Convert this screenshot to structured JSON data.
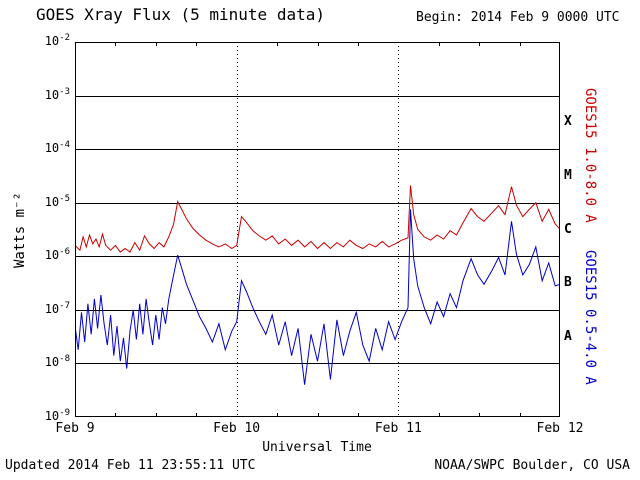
{
  "header": {
    "title": "GOES Xray Flux (5 minute data)",
    "begin_label": "Begin: 2014 Feb 9 0000 UTC"
  },
  "footer": {
    "updated": "Updated 2014 Feb 11 23:55:11 UTC",
    "source": "NOAA/SWPC Boulder, CO USA"
  },
  "chart_data": {
    "type": "line",
    "title": "GOES Xray Flux (5 minute data)",
    "xlabel": "Universal Time",
    "ylabel": "Watts m⁻²",
    "x_range_days": [
      0,
      3
    ],
    "ylim_exponents": [
      -9,
      -2
    ],
    "y_tick_exponents": [
      -2,
      -3,
      -4,
      -5,
      -6,
      -7,
      -8,
      -9
    ],
    "x_ticks": [
      {
        "day": 0,
        "label": "Feb 9"
      },
      {
        "day": 1,
        "label": "Feb 10"
      },
      {
        "day": 2,
        "label": "Feb 11"
      },
      {
        "day": 3,
        "label": "Feb 12"
      }
    ],
    "day_gridlines": [
      1,
      2
    ],
    "grid": true,
    "legend_position": "right",
    "flare_classes": [
      {
        "label": "X",
        "exponent": -3.5
      },
      {
        "label": "M",
        "exponent": -4.5
      },
      {
        "label": "C",
        "exponent": -5.5
      },
      {
        "label": "B",
        "exponent": -6.5
      },
      {
        "label": "A",
        "exponent": -7.5
      }
    ],
    "series": [
      {
        "name": "GOES15 1.0-8.0 A",
        "color": "#cc0000",
        "points": [
          [
            0.0,
            1.6e-06
          ],
          [
            0.03,
            1.3e-06
          ],
          [
            0.05,
            2.3e-06
          ],
          [
            0.07,
            1.5e-06
          ],
          [
            0.09,
            2.5e-06
          ],
          [
            0.11,
            1.7e-06
          ],
          [
            0.13,
            2.1e-06
          ],
          [
            0.15,
            1.5e-06
          ],
          [
            0.17,
            2.6e-06
          ],
          [
            0.19,
            1.6e-06
          ],
          [
            0.22,
            1.3e-06
          ],
          [
            0.25,
            1.6e-06
          ],
          [
            0.28,
            1.2e-06
          ],
          [
            0.31,
            1.4e-06
          ],
          [
            0.34,
            1.2e-06
          ],
          [
            0.37,
            1.8e-06
          ],
          [
            0.4,
            1.3e-06
          ],
          [
            0.43,
            2.4e-06
          ],
          [
            0.46,
            1.7e-06
          ],
          [
            0.49,
            1.4e-06
          ],
          [
            0.52,
            1.8e-06
          ],
          [
            0.55,
            1.5e-06
          ],
          [
            0.58,
            2.3e-06
          ],
          [
            0.61,
            4e-06
          ],
          [
            0.635,
            1.05e-05
          ],
          [
            0.66,
            7.5e-06
          ],
          [
            0.69,
            5e-06
          ],
          [
            0.73,
            3.3e-06
          ],
          [
            0.77,
            2.5e-06
          ],
          [
            0.81,
            2e-06
          ],
          [
            0.85,
            1.7e-06
          ],
          [
            0.89,
            1.5e-06
          ],
          [
            0.93,
            1.7e-06
          ],
          [
            0.97,
            1.4e-06
          ],
          [
            1.0,
            1.6e-06
          ],
          [
            1.03,
            5.5e-06
          ],
          [
            1.06,
            4.3e-06
          ],
          [
            1.1,
            3e-06
          ],
          [
            1.14,
            2.4e-06
          ],
          [
            1.18,
            2e-06
          ],
          [
            1.22,
            2.4e-06
          ],
          [
            1.26,
            1.7e-06
          ],
          [
            1.3,
            2.1e-06
          ],
          [
            1.34,
            1.6e-06
          ],
          [
            1.38,
            2e-06
          ],
          [
            1.42,
            1.5e-06
          ],
          [
            1.46,
            1.9e-06
          ],
          [
            1.5,
            1.4e-06
          ],
          [
            1.54,
            1.8e-06
          ],
          [
            1.58,
            1.4e-06
          ],
          [
            1.62,
            1.8e-06
          ],
          [
            1.66,
            1.5e-06
          ],
          [
            1.7,
            2e-06
          ],
          [
            1.74,
            1.6e-06
          ],
          [
            1.78,
            1.4e-06
          ],
          [
            1.82,
            1.7e-06
          ],
          [
            1.86,
            1.5e-06
          ],
          [
            1.9,
            1.9e-06
          ],
          [
            1.94,
            1.5e-06
          ],
          [
            1.98,
            1.7e-06
          ],
          [
            2.02,
            2e-06
          ],
          [
            2.06,
            2.2e-06
          ],
          [
            2.075,
            2.1e-05
          ],
          [
            2.095,
            6e-06
          ],
          [
            2.12,
            3.2e-06
          ],
          [
            2.16,
            2.3e-06
          ],
          [
            2.2,
            2e-06
          ],
          [
            2.24,
            2.5e-06
          ],
          [
            2.28,
            2.1e-06
          ],
          [
            2.32,
            3e-06
          ],
          [
            2.36,
            2.5e-06
          ],
          [
            2.4,
            4.2e-06
          ],
          [
            2.45,
            7.8e-06
          ],
          [
            2.49,
            5.5e-06
          ],
          [
            2.53,
            4.5e-06
          ],
          [
            2.58,
            6.5e-06
          ],
          [
            2.62,
            8.8e-06
          ],
          [
            2.66,
            6e-06
          ],
          [
            2.7,
            2e-05
          ],
          [
            2.73,
            9e-06
          ],
          [
            2.77,
            5.5e-06
          ],
          [
            2.81,
            7.5e-06
          ],
          [
            2.85,
            1e-05
          ],
          [
            2.89,
            4.5e-06
          ],
          [
            2.93,
            7.5e-06
          ],
          [
            2.97,
            4e-06
          ],
          [
            3.0,
            3.2e-06
          ]
        ]
      },
      {
        "name": "GOES15 0.5-4.0 A",
        "color": "#0000cc",
        "points": [
          [
            0.0,
            5e-08
          ],
          [
            0.02,
            1.8e-08
          ],
          [
            0.04,
            9e-08
          ],
          [
            0.06,
            2.5e-08
          ],
          [
            0.08,
            1.3e-07
          ],
          [
            0.1,
            3.5e-08
          ],
          [
            0.12,
            1.6e-07
          ],
          [
            0.14,
            4.5e-08
          ],
          [
            0.16,
            1.9e-07
          ],
          [
            0.18,
            5.5e-08
          ],
          [
            0.2,
            2.2e-08
          ],
          [
            0.22,
            8e-08
          ],
          [
            0.24,
            1.4e-08
          ],
          [
            0.26,
            5e-08
          ],
          [
            0.28,
            1.1e-08
          ],
          [
            0.3,
            3e-08
          ],
          [
            0.32,
            8e-09
          ],
          [
            0.34,
            4e-08
          ],
          [
            0.36,
            1e-07
          ],
          [
            0.38,
            2.8e-08
          ],
          [
            0.4,
            1.3e-07
          ],
          [
            0.42,
            3.5e-08
          ],
          [
            0.44,
            1.6e-07
          ],
          [
            0.46,
            5.5e-08
          ],
          [
            0.48,
            2.2e-08
          ],
          [
            0.5,
            8e-08
          ],
          [
            0.52,
            2.8e-08
          ],
          [
            0.54,
            1.1e-07
          ],
          [
            0.56,
            5.5e-08
          ],
          [
            0.58,
            1.6e-07
          ],
          [
            0.61,
            4.5e-07
          ],
          [
            0.635,
            1.05e-06
          ],
          [
            0.66,
            6e-07
          ],
          [
            0.69,
            3e-07
          ],
          [
            0.73,
            1.5e-07
          ],
          [
            0.77,
            7.5e-08
          ],
          [
            0.81,
            4.5e-08
          ],
          [
            0.85,
            2.5e-08
          ],
          [
            0.89,
            5.5e-08
          ],
          [
            0.93,
            1.8e-08
          ],
          [
            0.97,
            4e-08
          ],
          [
            1.0,
            6e-08
          ],
          [
            1.03,
            3.5e-07
          ],
          [
            1.06,
            2.2e-07
          ],
          [
            1.1,
            1.1e-07
          ],
          [
            1.14,
            6e-08
          ],
          [
            1.18,
            3.5e-08
          ],
          [
            1.22,
            8e-08
          ],
          [
            1.26,
            2.2e-08
          ],
          [
            1.3,
            6e-08
          ],
          [
            1.34,
            1.4e-08
          ],
          [
            1.38,
            4.5e-08
          ],
          [
            1.42,
            4e-09
          ],
          [
            1.46,
            3.5e-08
          ],
          [
            1.5,
            1.1e-08
          ],
          [
            1.54,
            5.5e-08
          ],
          [
            1.58,
            5e-09
          ],
          [
            1.62,
            6.5e-08
          ],
          [
            1.66,
            1.4e-08
          ],
          [
            1.7,
            4e-08
          ],
          [
            1.74,
            9e-08
          ],
          [
            1.78,
            2.2e-08
          ],
          [
            1.82,
            1.1e-08
          ],
          [
            1.86,
            4.5e-08
          ],
          [
            1.9,
            1.8e-08
          ],
          [
            1.94,
            6e-08
          ],
          [
            1.98,
            2.8e-08
          ],
          [
            2.02,
            6e-08
          ],
          [
            2.06,
            1.1e-07
          ],
          [
            2.075,
            7.5e-06
          ],
          [
            2.095,
            9e-07
          ],
          [
            2.12,
            2.8e-07
          ],
          [
            2.16,
            1.1e-07
          ],
          [
            2.2,
            5.5e-08
          ],
          [
            2.24,
            1.4e-07
          ],
          [
            2.28,
            7.5e-08
          ],
          [
            2.32,
            2e-07
          ],
          [
            2.36,
            1.1e-07
          ],
          [
            2.4,
            3.5e-07
          ],
          [
            2.45,
            9e-07
          ],
          [
            2.49,
            4.5e-07
          ],
          [
            2.53,
            3e-07
          ],
          [
            2.58,
            5.5e-07
          ],
          [
            2.62,
            9.5e-07
          ],
          [
            2.66,
            4.5e-07
          ],
          [
            2.7,
            4.5e-06
          ],
          [
            2.73,
            1.1e-06
          ],
          [
            2.77,
            4.5e-07
          ],
          [
            2.81,
            7e-07
          ],
          [
            2.85,
            1.5e-06
          ],
          [
            2.89,
            3.5e-07
          ],
          [
            2.93,
            7.5e-07
          ],
          [
            2.97,
            2.8e-07
          ],
          [
            3.0,
            3e-07
          ]
        ]
      }
    ]
  }
}
